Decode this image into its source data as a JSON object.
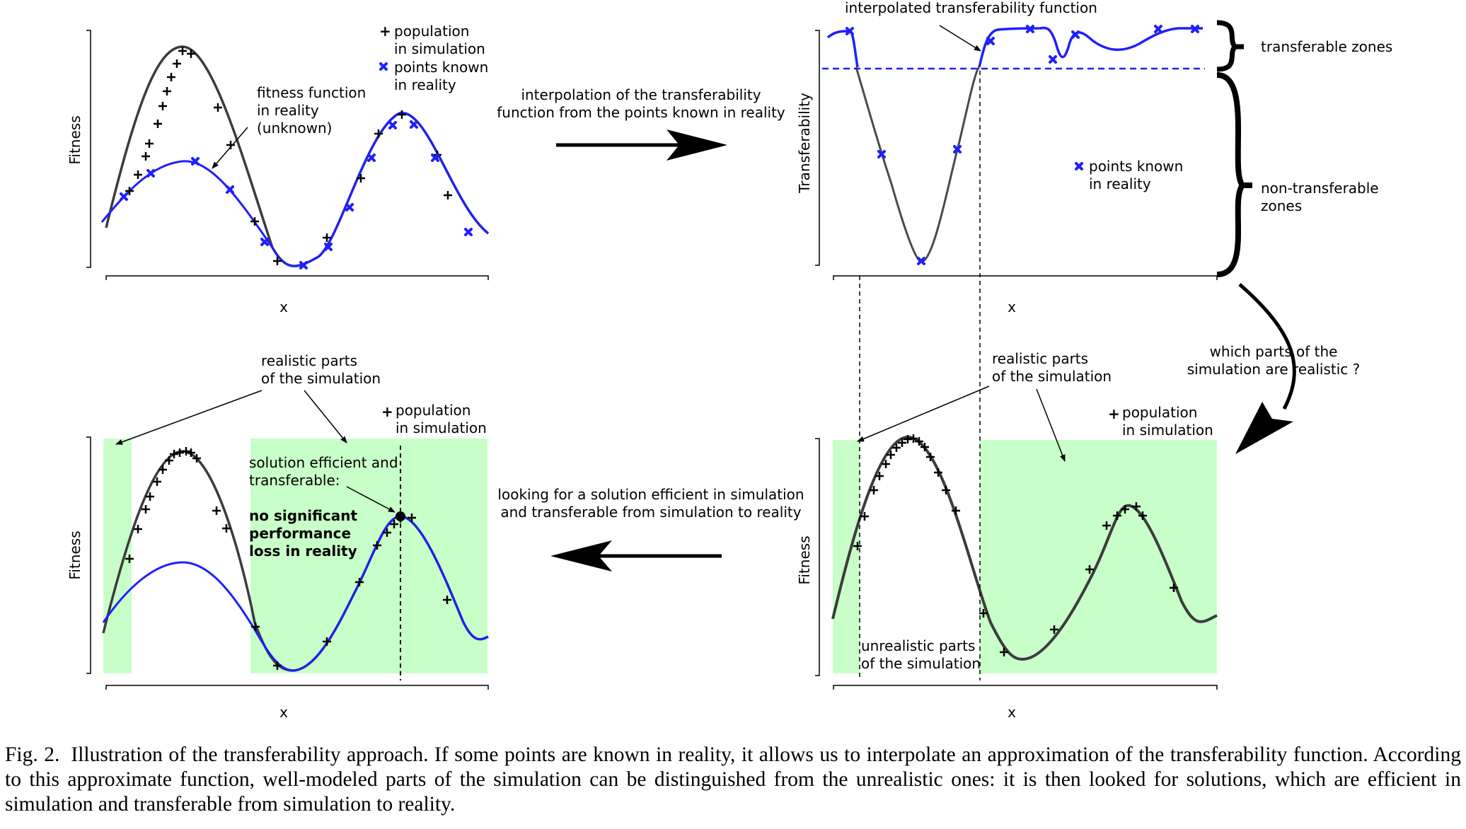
{
  "figure": {
    "panel_tl": {
      "ylabel": "Fitness",
      "xlabel": "x",
      "legend": {
        "plus_line1": "population",
        "plus_line2": "in simulation",
        "cross_line1": "points known",
        "cross_line2": "in reality"
      },
      "annotation": [
        "fitness function",
        "in reality",
        "(unknown)"
      ]
    },
    "arrow_top": [
      "interpolation of the transferability",
      "function from the points known in reality"
    ],
    "panel_tr": {
      "ylabel": "Transferability",
      "xlabel": "x",
      "annotation": "interpolated transferability function",
      "legend": {
        "cross_line1": "points known",
        "cross_line2": "in reality"
      },
      "zone_transferable": "transferable zones",
      "zone_nontransferable": [
        "non-transferable",
        "zones"
      ]
    },
    "arrow_right": [
      "which parts  of  the",
      "simulation are  realistic ?"
    ],
    "panel_br": {
      "ylabel": "Fitness",
      "xlabel": "x",
      "realistic": [
        "realistic parts",
        "of the simulation"
      ],
      "legend": {
        "plus_line1": "population",
        "plus_line2": "in simulation"
      },
      "unrealistic": [
        "unrealistic parts",
        "of the simulation"
      ]
    },
    "arrow_bottom": [
      "looking for a solution efficient in simulation",
      "and transferable from simulation to reality"
    ],
    "panel_bl": {
      "ylabel": "Fitness",
      "xlabel": "x",
      "realistic": [
        "realistic parts",
        "of the simulation"
      ],
      "legend": {
        "plus_line1": "population",
        "plus_line2": "in simulation"
      },
      "solution": [
        "solution efficient and",
        "transferable:"
      ],
      "bold": [
        "no significant",
        "performance",
        "loss in reality"
      ]
    }
  },
  "caption": {
    "label": "Fig. 2.",
    "text": "Illustration of the transferability approach. If some points are known in reality, it allows us to interpolate an approximation of the transferability function. According to this approximate function, well-modeled parts of the simulation can be distinguished from the unrealistic ones: it is then looked for solutions, which are efficient in simulation and transferable from simulation to reality."
  }
}
